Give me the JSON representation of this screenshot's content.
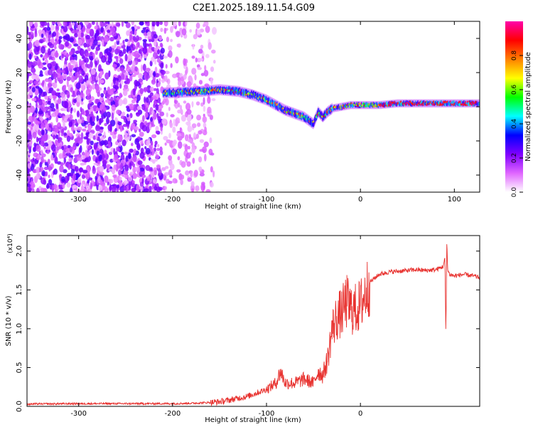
{
  "title": "C2E1.2025.189.11.54.G09",
  "chart_data": [
    {
      "type": "heatmap",
      "title": "C2E1.2025.189.11.54.G09",
      "xlabel": "Height of straight line (km)",
      "ylabel": "Frequency (Hz)",
      "xlim": [
        -355,
        127
      ],
      "ylim": [
        -50,
        50
      ],
      "xticks": [
        -300,
        -200,
        -100,
        0,
        100
      ],
      "yticks": [
        -40,
        -20,
        0,
        20,
        40
      ],
      "grid": false,
      "colorbar": {
        "label": "Normalized spectral amplitude",
        "range": [
          0,
          1
        ],
        "ticks": [
          "0.0",
          "0.2",
          "0.4",
          "0.6",
          "0.8"
        ],
        "colormap": [
          "#ffffff",
          "#e066ff",
          "#7f00ff",
          "#0000ff",
          "#00ffff",
          "#00ff00",
          "#ffff00",
          "#ff8000",
          "#ff0000",
          "#ff00aa"
        ]
      },
      "signal_track": {
        "x": [
          -210,
          -190,
          -170,
          -150,
          -130,
          -115,
          -100,
          -90,
          -80,
          -70,
          -60,
          -50,
          -45,
          -40,
          -35,
          -30,
          -20,
          -10,
          0,
          20,
          40,
          60,
          80,
          100,
          127
        ],
        "y": [
          8,
          8.5,
          9,
          10,
          9,
          7,
          4,
          1,
          -2,
          -4,
          -6,
          -10,
          -3,
          -6,
          -3,
          -1,
          0,
          1,
          1,
          1,
          2,
          2,
          2,
          2,
          2
        ]
      }
    },
    {
      "type": "line",
      "xlabel": "Height of straight line (km)",
      "ylabel": "SNR (10 * v/v)",
      "y_multiplier": "(x10⁴)",
      "xlim": [
        -355,
        127
      ],
      "ylim": [
        0,
        2.2
      ],
      "xticks": [
        -300,
        -200,
        -100,
        0
      ],
      "yticks": [
        "0.0",
        "0.5",
        "1.0",
        "1.5",
        "2.0"
      ],
      "grid": false,
      "color": "#e8322f",
      "series": [
        {
          "x": [
            -355,
            -300,
            -250,
            -200,
            -180,
            -160,
            -150,
            -140,
            -120,
            -100,
            -90,
            -85,
            -80,
            -70,
            -60,
            -50,
            -45,
            -40,
            -35,
            -30,
            -25,
            -20,
            -15,
            -10,
            -5,
            0,
            5,
            10,
            20,
            30,
            40,
            50,
            60,
            70,
            80,
            88,
            90,
            91,
            92,
            93,
            95,
            100,
            110,
            120,
            127
          ],
          "y": [
            0.03,
            0.035,
            0.035,
            0.035,
            0.04,
            0.05,
            0.06,
            0.08,
            0.13,
            0.22,
            0.3,
            0.45,
            0.3,
            0.3,
            0.35,
            0.3,
            0.45,
            0.4,
            0.6,
            1.0,
            1.15,
            1.2,
            1.35,
            1.25,
            1.25,
            1.3,
            1.45,
            1.6,
            1.7,
            1.73,
            1.74,
            1.75,
            1.76,
            1.75,
            1.76,
            1.8,
            1.9,
            0.9,
            2.15,
            1.75,
            1.7,
            1.68,
            1.7,
            1.68,
            1.66
          ]
        }
      ]
    }
  ]
}
